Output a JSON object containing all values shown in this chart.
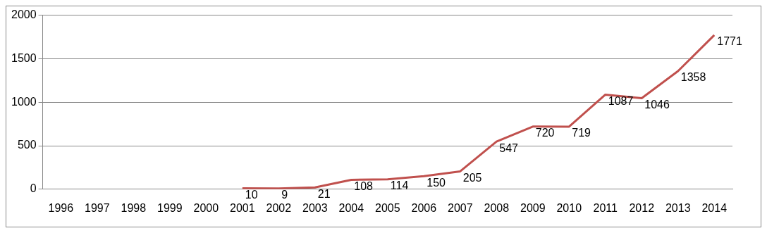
{
  "chart_data": {
    "type": "line",
    "categories": [
      "1996",
      "1997",
      "1998",
      "1999",
      "2000",
      "2001",
      "2002",
      "2003",
      "2004",
      "2005",
      "2006",
      "2007",
      "2008",
      "2009",
      "2010",
      "2011",
      "2012",
      "2013",
      "2014"
    ],
    "series": [
      {
        "color": "#c0504d",
        "values": [
          null,
          null,
          null,
          null,
          null,
          10,
          9,
          21,
          108,
          114,
          150,
          205,
          547,
          720,
          719,
          1087,
          1046,
          1358,
          1771
        ]
      }
    ],
    "ylim": [
      0,
      2000
    ],
    "yticks": [
      0,
      500,
      1000,
      1500,
      2000
    ],
    "grid": "y",
    "legend": false,
    "marker": "none",
    "line_style": "solid",
    "data_labels": true
  }
}
